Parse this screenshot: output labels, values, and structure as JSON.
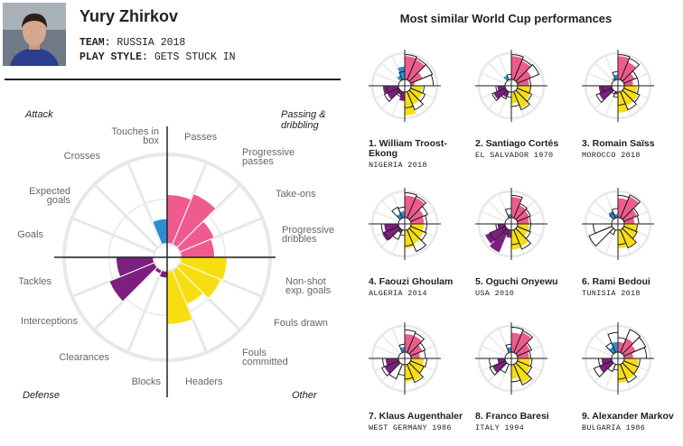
{
  "player": {
    "name": "Yury Zhirkov",
    "team_label": "TEAM:",
    "team_value": "RUSSIA 2018",
    "style_label": "PLAY STYLE:",
    "style_value": "GETS STUCK IN"
  },
  "colors": {
    "attack": "#2a8fd1",
    "passing": "#ef5b8f",
    "other": "#f7de12",
    "defense": "#7d1f80",
    "guide": "#e8e8e8",
    "axis": "#222222"
  },
  "similar_title": "Most similar World Cup performances",
  "chart_data": {
    "type": "polar-bar",
    "scale_max": 1,
    "quadrants": [
      "Attack",
      "Passing & dribbling",
      "Defense",
      "Other"
    ],
    "categories": [
      "Passes",
      "Progressive passes",
      "Take-ons",
      "Progressive dribbles",
      "Non-shot exp. goals",
      "Fouls drawn",
      "Fouls committed",
      "Headers",
      "Blocks",
      "Clearances",
      "Interceptions",
      "Tackles",
      "Goals",
      "Expected goals",
      "Crosses",
      "Touches in box"
    ],
    "category_groups": [
      "passing",
      "passing",
      "passing",
      "passing",
      "other",
      "other",
      "other",
      "other",
      "defense",
      "defense",
      "defense",
      "defense",
      "attack",
      "attack",
      "attack",
      "attack"
    ],
    "values": [
      0.55,
      0.62,
      0.42,
      0.38,
      0.52,
      0.5,
      0.42,
      0.6,
      0.08,
      0.05,
      0.55,
      0.42,
      0.0,
      0.0,
      0.0,
      0.28
    ]
  },
  "similar": [
    {
      "name": "1. William Troost-Ekong",
      "team": "NIGERIA 2018",
      "values": [
        0.9,
        0.85,
        0.5,
        0.15,
        0.45,
        0.5,
        0.55,
        0.9,
        0.35,
        0.15,
        0.5,
        0.6,
        0.0,
        0.0,
        0.2,
        0.5
      ],
      "outlines": [
        0.95,
        0.9,
        0.9,
        0.85,
        0.5,
        0.6,
        0.75,
        0.6,
        0.0,
        0.2,
        0.6,
        0.45,
        0.0,
        0.0,
        0.0,
        0.3
      ]
    },
    {
      "name": "2. Santiago Cortés",
      "team": "EL SALVADOR 1970",
      "values": [
        0.9,
        0.8,
        0.6,
        0.45,
        0.5,
        0.55,
        0.7,
        0.45,
        0.0,
        0.25,
        0.5,
        0.3,
        0.0,
        0.0,
        0.2,
        0.0
      ],
      "outlines": [
        0.95,
        0.85,
        0.9,
        0.5,
        0.5,
        0.6,
        0.75,
        0.55,
        0.2,
        0.3,
        0.55,
        0.35,
        0.0,
        0.0,
        0.0,
        0.2
      ]
    },
    {
      "name": "3. Romain Saïss",
      "team": "MOROCCO 2018",
      "values": [
        0.9,
        0.75,
        0.45,
        0.35,
        0.5,
        0.6,
        0.6,
        0.8,
        0.1,
        0.0,
        0.55,
        0.5,
        0.0,
        0.0,
        0.1,
        0.2
      ],
      "outlines": [
        0.95,
        0.9,
        0.55,
        0.55,
        0.55,
        0.65,
        0.75,
        0.5,
        0.2,
        0.1,
        0.65,
        0.35,
        0.0,
        0.0,
        0.0,
        0.3
      ]
    },
    {
      "name": "4. Faouzi Ghoulam",
      "team": "ALGERIA 2014",
      "values": [
        0.85,
        0.85,
        0.55,
        0.5,
        0.5,
        0.55,
        0.6,
        0.7,
        0.0,
        0.15,
        0.7,
        0.55,
        0.0,
        0.0,
        0.2,
        0.25
      ],
      "outlines": [
        0.95,
        0.9,
        0.7,
        0.6,
        0.6,
        0.65,
        0.9,
        0.6,
        0.2,
        0.4,
        0.6,
        0.65,
        0.0,
        0.0,
        0.45,
        0.4
      ]
    },
    {
      "name": "5. Oguchi Onyewu",
      "team": "USA 2010",
      "values": [
        0.8,
        0.55,
        0.5,
        0.45,
        0.45,
        0.45,
        0.7,
        0.75,
        0.3,
        0.95,
        0.85,
        0.3,
        0.0,
        0.0,
        0.0,
        0.15
      ],
      "outlines": [
        0.85,
        0.6,
        0.55,
        0.5,
        0.5,
        0.55,
        0.8,
        0.55,
        0.0,
        0.2,
        0.65,
        0.35,
        0.0,
        0.0,
        0.0,
        0.35
      ]
    },
    {
      "name": "6. Rami Bedoui",
      "team": "TUNISIA 2018",
      "values": [
        0.75,
        0.9,
        0.55,
        0.4,
        0.5,
        0.55,
        0.75,
        0.7,
        0.0,
        0.0,
        0.0,
        0.0,
        0.0,
        0.0,
        0.3,
        0.15
      ],
      "outlines": [
        0.85,
        0.95,
        0.6,
        0.55,
        0.5,
        0.55,
        0.75,
        0.55,
        0.0,
        0.2,
        0.95,
        0.7,
        0.0,
        0.0,
        0.2,
        0.35
      ]
    },
    {
      "name": "7. Klaus Augenthaler",
      "team": "WEST GERMANY 1986",
      "values": [
        0.7,
        0.7,
        0.5,
        0.35,
        0.5,
        0.55,
        0.7,
        0.65,
        0.0,
        0.0,
        0.6,
        0.5,
        0.0,
        0.0,
        0.0,
        0.2
      ],
      "outlines": [
        0.85,
        0.8,
        0.6,
        0.55,
        0.6,
        0.55,
        0.75,
        0.55,
        0.4,
        0.6,
        0.7,
        0.6,
        0.0,
        0.0,
        0.0,
        0.3
      ]
    },
    {
      "name": "8. Franco Baresi",
      "team": "ITALY 1994",
      "values": [
        0.75,
        0.85,
        0.55,
        0.45,
        0.5,
        0.55,
        0.8,
        0.55,
        0.0,
        0.0,
        0.55,
        0.3,
        0.0,
        0.0,
        0.0,
        0.2
      ],
      "outlines": [
        0.95,
        0.9,
        0.6,
        0.5,
        0.55,
        0.6,
        0.85,
        0.65,
        0.0,
        0.35,
        0.65,
        0.6,
        0.0,
        0.0,
        0.0,
        0.3
      ]
    },
    {
      "name": "9. Alexander Markov",
      "team": "BULGARIA 1986",
      "values": [
        0.4,
        0.6,
        0.5,
        0.35,
        0.55,
        0.6,
        0.65,
        0.7,
        0.0,
        0.0,
        0.55,
        0.4,
        0.0,
        0.0,
        0.25,
        0.4
      ],
      "outlines": [
        0.55,
        0.95,
        0.9,
        0.85,
        0.6,
        0.6,
        0.75,
        0.55,
        0.2,
        0.3,
        0.75,
        0.5,
        0.0,
        0.0,
        0.4,
        0.75
      ]
    }
  ]
}
